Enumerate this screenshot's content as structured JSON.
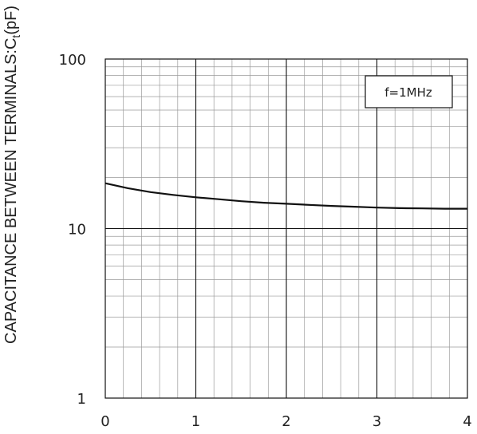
{
  "chart_data": {
    "type": "line",
    "title": "",
    "xlabel": "",
    "ylabel": "CAPACITANCE BETWEEN TERMINALS:Ct(pF)",
    "ylabel_main": "CAPACITANCE BETWEEN TERMINALS:C",
    "ylabel_sub": "t",
    "ylabel_tail": "(pF)",
    "xlim": [
      0,
      4
    ],
    "ylim": [
      1,
      100
    ],
    "yscale": "log",
    "grid": true,
    "x_ticks": [
      "0",
      "1",
      "2",
      "3",
      "4"
    ],
    "y_ticks": [
      "1",
      "10",
      "100"
    ],
    "legend_position": "top-right",
    "annotation": "f=1MHz",
    "series": [
      {
        "x": [
          0,
          0.25,
          0.5,
          0.75,
          1.0,
          1.25,
          1.5,
          1.75,
          2.0,
          2.25,
          2.5,
          2.75,
          3.0,
          3.25,
          3.5,
          3.75,
          4.0
        ],
        "y": [
          18.5,
          17.3,
          16.4,
          15.8,
          15.3,
          14.9,
          14.5,
          14.2,
          14.0,
          13.8,
          13.6,
          13.45,
          13.3,
          13.2,
          13.15,
          13.1,
          13.1
        ]
      }
    ],
    "colors": {
      "line": "#111111",
      "major_grid": "#111111",
      "minor_grid": "#9a9a9a"
    }
  }
}
